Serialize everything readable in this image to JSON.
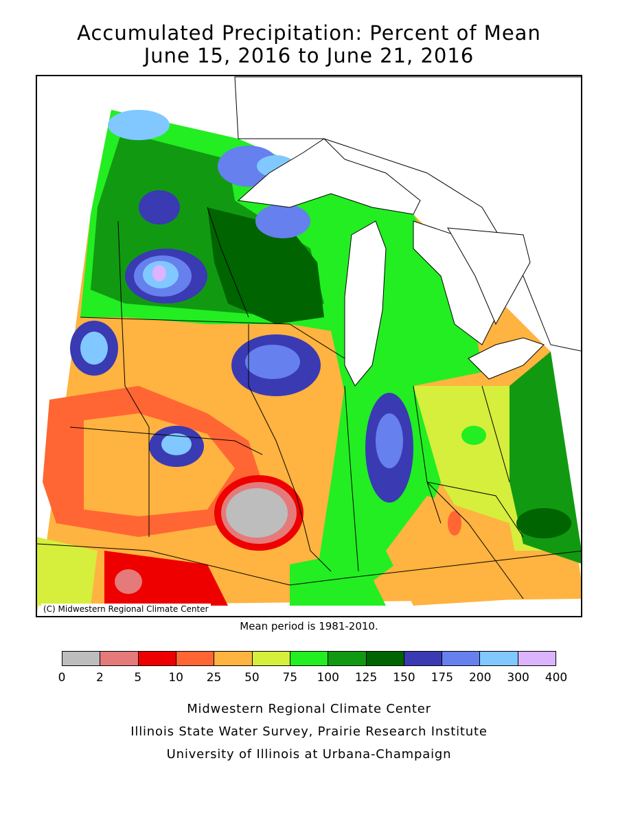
{
  "header": {
    "title_line1": "Accumulated Precipitation: Percent of Mean",
    "title_line2": "June 15, 2016 to June 21, 2016"
  },
  "map": {
    "copyright": "(C) Midwestern Regional Climate Center",
    "mean_note": "Mean period is 1981-2010."
  },
  "legend": {
    "ticks": [
      "0",
      "2",
      "5",
      "10",
      "25",
      "50",
      "75",
      "100",
      "125",
      "150",
      "175",
      "200",
      "300",
      "400"
    ],
    "colors": [
      "#bdbdbd",
      "#e57a7a",
      "#ee0000",
      "#ff6633",
      "#ffb340",
      "#d6ee3c",
      "#22ee22",
      "#119a11",
      "#006400",
      "#3a3ab3",
      "#6680ee",
      "#80c8ff",
      "#dcb3ff"
    ]
  },
  "footer": {
    "credit1": "Midwestern Regional Climate Center",
    "credit2": "Illinois State Water Survey, Prairie Research Institute",
    "credit3": "University of Illinois at Urbana-Champaign"
  }
}
